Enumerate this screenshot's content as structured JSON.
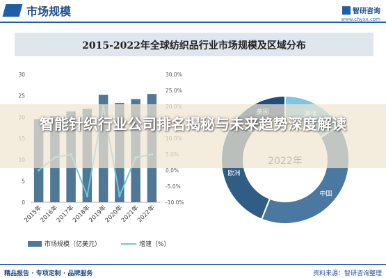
{
  "header": {
    "section_title": "市场规模",
    "brand_name": "智研咨询",
    "brand_url": "www.chyxx.com"
  },
  "overlay": {
    "headline": "智能针织行业公司排名揭秘与未来趋势深度解读"
  },
  "footer": {
    "tagline": "精品报告 · 专项定制 · 品牌服务",
    "source": "资料来源：智研咨询整理"
  },
  "colors": {
    "bar": "#4f7896",
    "line": "#6fc4e3",
    "donut": [
      "#4a78a0",
      "#2f5d86",
      "#1f4e79",
      "#7cc6e3"
    ],
    "brand": "#1f5fa8"
  },
  "chart_data": [
    {
      "type": "bar",
      "title": "2015-2022年全球纺织品行业市场规模及区域分布",
      "categories": [
        "2015年",
        "2016年",
        "2017年",
        "2018年",
        "2019年",
        "2020年",
        "2021年",
        "2022年"
      ],
      "series": [
        {
          "name": "市场规模（亿美元）",
          "type": "bar",
          "axis": "left",
          "values": [
            19.5,
            20.2,
            21.3,
            21.9,
            25.2,
            23.3,
            24.2,
            25.4
          ]
        },
        {
          "name": "增速（%）",
          "type": "line",
          "axis": "right",
          "values": [
            0.0,
            4.0,
            5.0,
            -8.0,
            20.0,
            -8.0,
            4.0,
            5.0
          ]
        }
      ],
      "ylim_left": [
        0,
        30
      ],
      "yticks_left": [
        "0",
        "5",
        "10",
        "15",
        "20",
        "25",
        "30"
      ],
      "ylim_right": [
        -10.0,
        30.0
      ],
      "yticks_right": [
        "-10.0%",
        "-5.0%",
        "0.0%",
        "5.0%",
        "10.0%",
        "15.0%",
        "20.0%",
        "25.0%",
        "30.0%"
      ],
      "grid": false,
      "legend": "bottom"
    },
    {
      "type": "pie",
      "style": "donut",
      "center_label": "2022年",
      "categories": [
        "中国",
        "欧洲",
        "美国",
        "其他"
      ],
      "values": [
        40,
        30,
        14,
        16
      ],
      "legend": "none"
    }
  ]
}
